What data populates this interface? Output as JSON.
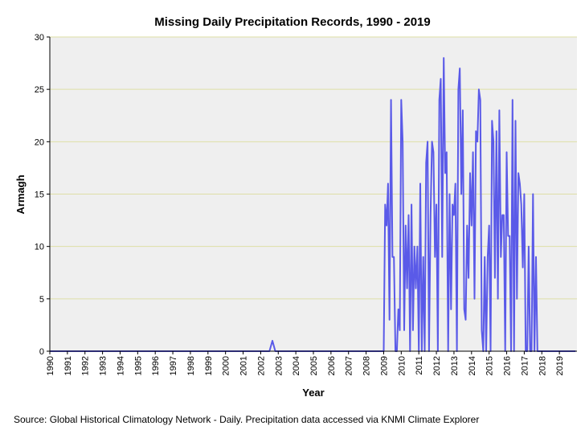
{
  "chart_data": {
    "type": "line",
    "title": "Missing Daily Precipitation Records, 1990 - 2019",
    "xlabel": "Year",
    "ylabel": "Armagh",
    "source": "Source: Global Historical Climatology Network - Daily. Precipitation data accessed via KNMI Climate Explorer",
    "ylim": [
      0,
      30
    ],
    "xlim": [
      1990,
      2020
    ],
    "yticks": [
      0,
      5,
      10,
      15,
      20,
      25,
      30
    ],
    "xtick_labels": [
      "1990",
      "1991",
      "1992",
      "1993",
      "1994",
      "1995",
      "1996",
      "1997",
      "1998",
      "1999",
      "2000",
      "2001",
      "2002",
      "2003",
      "2004",
      "2005",
      "2006",
      "2007",
      "2008",
      "2009",
      "2010",
      "2011",
      "2012",
      "2013",
      "2014",
      "2015",
      "2016",
      "2017",
      "2018",
      "2019"
    ],
    "grid": "horizontal",
    "colors": {
      "line": "#5a5ae8",
      "plot_bg": "#efefef",
      "grid": "#dedfa6",
      "axis": "#000000"
    },
    "series": [
      {
        "name": "Armagh",
        "x": [
          1990.0,
          2002.5,
          2002.667,
          2002.833,
          2009.0,
          2009.083,
          2009.167,
          2009.25,
          2009.333,
          2009.417,
          2009.5,
          2009.583,
          2009.667,
          2009.75,
          2009.833,
          2009.917,
          2010.0,
          2010.083,
          2010.167,
          2010.25,
          2010.333,
          2010.417,
          2010.5,
          2010.583,
          2010.667,
          2010.75,
          2010.833,
          2010.917,
          2011.0,
          2011.083,
          2011.167,
          2011.25,
          2011.333,
          2011.417,
          2011.5,
          2011.583,
          2011.667,
          2011.75,
          2011.833,
          2011.917,
          2012.0,
          2012.083,
          2012.167,
          2012.25,
          2012.333,
          2012.417,
          2012.5,
          2012.583,
          2012.667,
          2012.75,
          2012.833,
          2012.917,
          2013.0,
          2013.083,
          2013.167,
          2013.25,
          2013.333,
          2013.417,
          2013.5,
          2013.583,
          2013.667,
          2013.75,
          2013.833,
          2013.917,
          2014.0,
          2014.083,
          2014.167,
          2014.25,
          2014.333,
          2014.417,
          2014.5,
          2014.583,
          2014.667,
          2014.75,
          2014.833,
          2014.917,
          2015.0,
          2015.083,
          2015.167,
          2015.25,
          2015.333,
          2015.417,
          2015.5,
          2015.583,
          2015.667,
          2015.75,
          2015.833,
          2015.917,
          2016.0,
          2016.083,
          2016.167,
          2016.25,
          2016.333,
          2016.417,
          2016.5,
          2016.583,
          2016.667,
          2016.75,
          2016.833,
          2016.917,
          2017.0,
          2017.083,
          2017.167,
          2017.25,
          2017.333,
          2017.417,
          2017.5,
          2017.583,
          2017.667,
          2017.75,
          2017.833,
          2017.917,
          2018.0,
          2018.083,
          2018.167,
          2018.25,
          2018.333,
          2018.417,
          2018.5,
          2018.583,
          2018.667,
          2018.75,
          2018.833,
          2018.917,
          2019.0,
          2019.083,
          2019.167,
          2019.25,
          2019.333,
          2019.417,
          2019.5,
          2019.583,
          2019.667,
          2019.75,
          2019.833,
          2019.917
        ],
        "values": [
          0,
          0,
          1,
          0,
          0,
          14,
          12,
          16,
          3,
          24,
          9,
          9,
          0,
          0,
          4,
          2,
          24,
          20,
          2,
          12,
          6,
          13,
          0,
          14,
          2,
          10,
          6,
          10,
          0,
          16,
          0,
          9,
          0,
          18,
          20,
          0,
          13,
          20,
          19,
          9,
          14,
          0,
          24,
          26,
          9,
          28,
          17,
          19,
          0,
          15,
          4,
          14,
          13,
          16,
          0,
          25,
          27,
          15,
          23,
          4,
          3,
          12,
          7,
          17,
          12,
          19,
          5,
          21,
          20,
          25,
          24,
          2,
          0,
          9,
          0,
          9,
          12,
          0,
          22,
          20,
          7,
          21,
          5,
          23,
          9,
          13,
          13,
          0,
          19,
          11,
          11,
          0,
          24,
          0,
          22,
          5,
          17,
          16,
          14,
          8,
          15,
          0,
          0,
          10,
          0,
          0,
          15,
          0,
          9,
          0,
          0,
          0,
          0,
          0,
          0,
          0,
          0,
          0,
          0,
          0,
          0,
          0,
          0,
          0,
          0,
          0,
          0,
          0,
          0,
          0,
          0,
          0,
          0,
          0,
          0,
          0
        ]
      }
    ]
  }
}
